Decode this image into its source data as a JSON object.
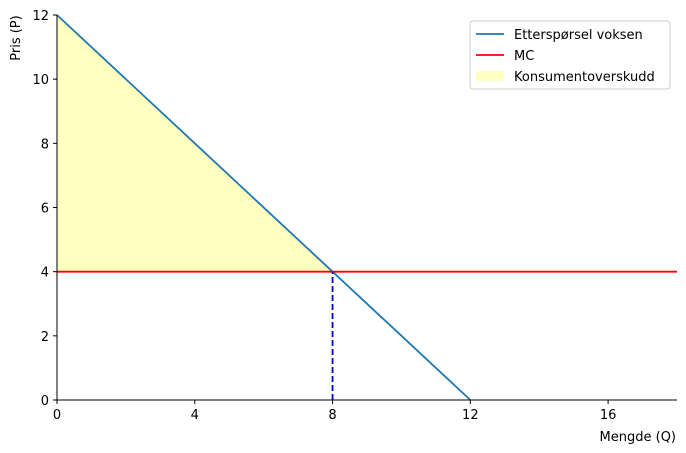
{
  "chart_data": {
    "type": "line",
    "xlabel": "Mengde (Q)",
    "ylabel": "Pris (P)",
    "xlim": [
      0,
      18
    ],
    "ylim": [
      0,
      12
    ],
    "xticks": [
      0,
      4,
      8,
      12,
      16
    ],
    "yticks": [
      0,
      2,
      4,
      6,
      8,
      10,
      12
    ],
    "grid": false,
    "legend_position": "upper right",
    "series": [
      {
        "name": "Etterspørsel voksen",
        "color": "#1f77b4",
        "x": [
          0,
          12
        ],
        "y": [
          12,
          0
        ]
      },
      {
        "name": "MC",
        "color": "#ff0000",
        "x": [
          0,
          18
        ],
        "y": [
          4,
          4
        ]
      }
    ],
    "areas": [
      {
        "name": "Konsumentoverskudd",
        "color": "#ffffc0",
        "x": [
          0,
          0,
          8
        ],
        "y": [
          12,
          4,
          4
        ]
      }
    ],
    "reference_lines": [
      {
        "color": "#0000cc",
        "style": "dashed",
        "x": [
          8,
          8
        ],
        "y": [
          0,
          4
        ]
      }
    ]
  }
}
